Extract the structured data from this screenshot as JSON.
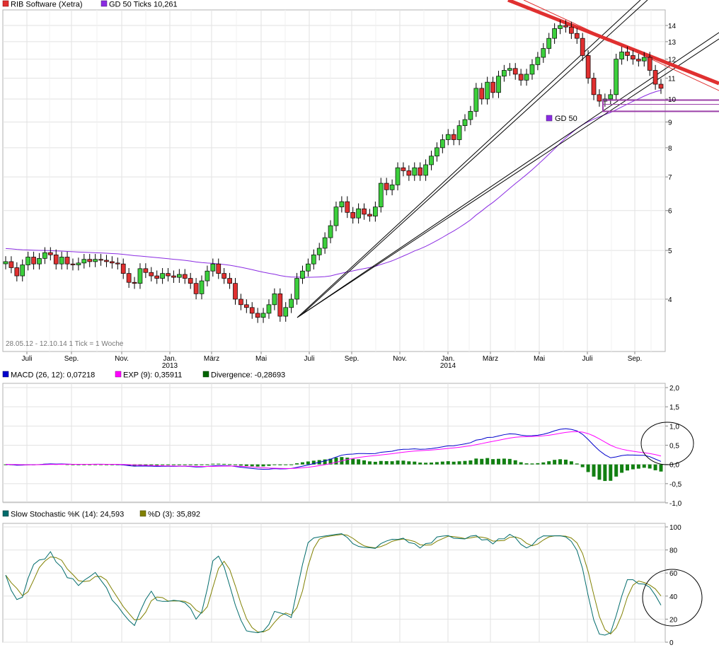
{
  "price_panel": {
    "legend": [
      {
        "label": "RIB Software (Xetra)",
        "color": "#e03030"
      },
      {
        "label": "GD 50 Ticks 10,261",
        "color": "#8a2be2"
      }
    ],
    "info_text": "28.05.12 - 12.10.14   1 Tick = 1 Woche",
    "gd_annotation": "GD 50",
    "y_ticks": [
      "4",
      "5",
      "6",
      "7",
      "8",
      "9",
      "10",
      "11",
      "12",
      "13",
      "14"
    ],
    "x_ticks": [
      "Juli",
      "Sep.",
      "Nov.",
      "Jan.",
      "März",
      "Mai",
      "Juli",
      "Sep.",
      "Nov.",
      "Jan.",
      "März",
      "Mai",
      "Juli",
      "Sep."
    ],
    "year_labels": [
      "2013",
      "2014"
    ]
  },
  "macd_panel": {
    "legend": [
      {
        "label": "MACD (26, 12): 0,07218",
        "color": "#0000cc"
      },
      {
        "label": "EXP (9): 0,35911",
        "color": "#ff00ff"
      },
      {
        "label": "Divergence: -0,28693",
        "color": "#006400"
      }
    ],
    "y_ticks": [
      "2,0",
      "1,5",
      "1,0",
      "0,5",
      "0,0",
      "-0,5",
      "-1,0"
    ]
  },
  "stoch_panel": {
    "legend": [
      {
        "label": "Slow Stochastic %K (14): 24,593",
        "color": "#006b6b"
      },
      {
        "label": "%D (3): 35,892",
        "color": "#808000"
      }
    ],
    "y_ticks": [
      "100",
      "80",
      "60",
      "40",
      "20",
      "0"
    ]
  },
  "chart_data": [
    {
      "type": "candlestick",
      "title": "RIB Software (Xetra)",
      "period": "28.05.12 - 12.10.14",
      "interval": "1 Tick = 1 Woche",
      "y_scale": "log",
      "ylim": [
        3.0,
        15.0
      ],
      "series": [
        {
          "name": "RIB Software (Xetra)",
          "weekly_close": [
            4.75,
            4.62,
            4.45,
            4.68,
            4.85,
            4.7,
            4.82,
            4.95,
            4.9,
            4.7,
            4.85,
            4.7,
            4.68,
            4.72,
            4.8,
            4.75,
            4.8,
            4.78,
            4.75,
            4.72,
            4.7,
            4.5,
            4.32,
            4.3,
            4.6,
            4.52,
            4.45,
            4.4,
            4.5,
            4.45,
            4.42,
            4.48,
            4.4,
            4.3,
            4.1,
            4.35,
            4.55,
            4.7,
            4.5,
            4.4,
            4.3,
            4.0,
            3.9,
            3.85,
            3.75,
            3.68,
            3.75,
            3.9,
            4.1,
            3.7,
            3.85,
            4.0,
            4.4,
            4.55,
            4.7,
            4.9,
            5.05,
            5.3,
            5.6,
            6.1,
            6.25,
            5.95,
            5.8,
            6.05,
            5.9,
            5.85,
            6.1,
            6.8,
            6.6,
            6.75,
            7.3,
            7.2,
            7.05,
            7.3,
            7.05,
            7.4,
            7.7,
            8.0,
            8.3,
            8.5,
            8.3,
            8.85,
            9.1,
            9.45,
            10.5,
            10.0,
            10.8,
            10.3,
            11.1,
            11.4,
            11.5,
            11.2,
            10.9,
            11.2,
            11.7,
            12.1,
            12.6,
            13.2,
            13.8,
            14.0,
            13.9,
            13.5,
            13.2,
            12.2,
            11.0,
            10.2,
            9.9,
            10.0,
            10.2,
            12.0,
            12.4,
            12.2,
            12.0,
            11.9,
            12.1,
            11.4,
            10.7,
            10.5
          ]
        },
        {
          "name": "GD 50",
          "last_value": 10.261
        }
      ],
      "trendlines": [
        "rising support from Juni 2013 low",
        "falling resistance from Juni 2014 high"
      ]
    },
    {
      "type": "line",
      "title": "MACD (26, 12)",
      "ylim": [
        -1.0,
        2.0
      ],
      "series": [
        {
          "name": "MACD (26, 12)",
          "last_value": 0.07218
        },
        {
          "name": "EXP (9)",
          "last_value": 0.35911
        },
        {
          "name": "Divergence",
          "last_value": -0.28693
        }
      ]
    },
    {
      "type": "line",
      "title": "Slow Stochastic",
      "ylim": [
        0,
        100
      ],
      "series": [
        {
          "name": "Slow Stochastic %K (14)",
          "last_value": 24.593
        },
        {
          "name": "%D (3)",
          "last_value": 35.892
        }
      ]
    }
  ]
}
